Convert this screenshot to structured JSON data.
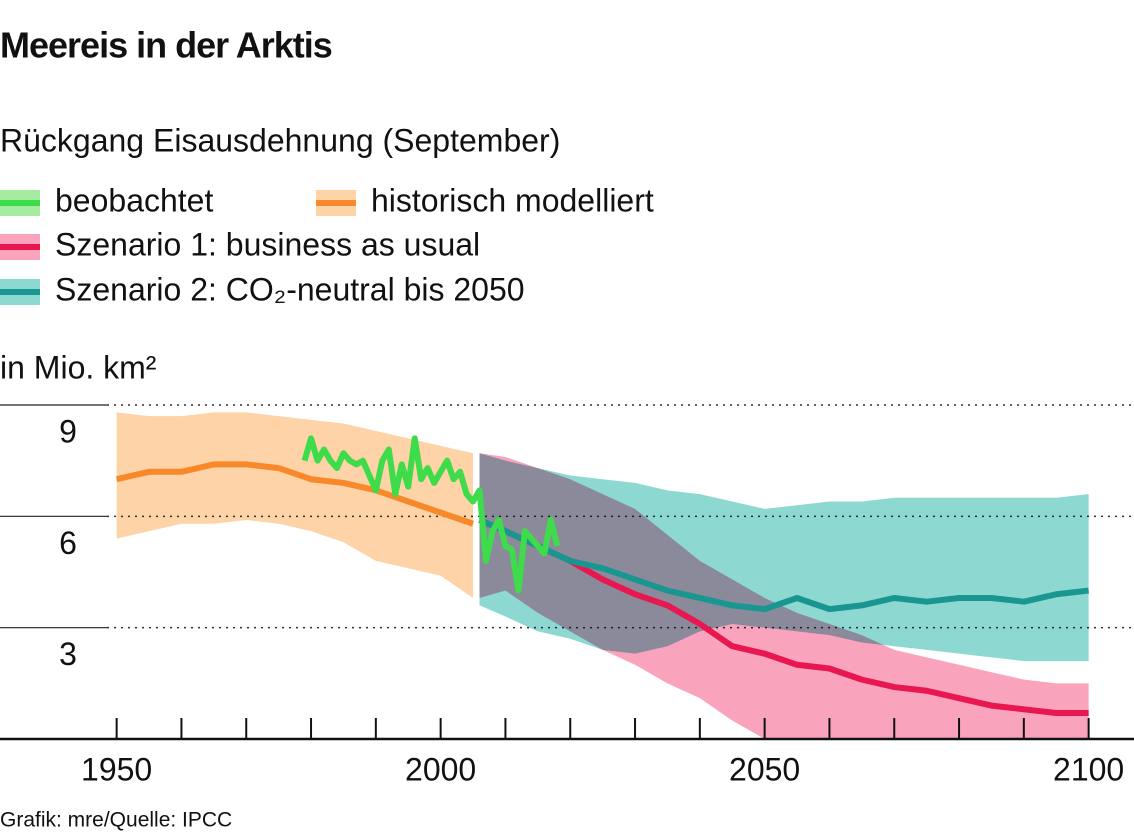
{
  "chart_data": {
    "type": "line",
    "title": "Meereis in der Arktis",
    "subtitle": "Rückgang Eisausdehnung (September)",
    "y_label": "in Mio. km²",
    "source": "Grafik: mre/Quelle: IPCC",
    "xlim": [
      1932,
      2107
    ],
    "ylim": [
      0,
      9
    ],
    "xticks": [
      1950,
      2000,
      2050,
      2100
    ],
    "xminorticks": [
      1950,
      1960,
      1970,
      1980,
      1990,
      2000,
      2010,
      2020,
      2030,
      2040,
      2050,
      2060,
      2070,
      2080,
      2090,
      2100
    ],
    "yticks": [
      3,
      6,
      9
    ],
    "grid": true,
    "series": [
      {
        "name": "beobachtet",
        "color": "#3edb4a",
        "band_color": "#a6eca0",
        "x": [
          1979,
          1980,
          1981,
          1982,
          1983,
          1984,
          1985,
          1986,
          1987,
          1988,
          1989,
          1990,
          1991,
          1992,
          1993,
          1994,
          1995,
          1996,
          1997,
          1998,
          1999,
          2000,
          2001,
          2002,
          2003,
          2004,
          2005,
          2006,
          2007,
          2008,
          2009,
          2010,
          2011,
          2012,
          2013,
          2014,
          2015,
          2016,
          2017,
          2018
        ],
        "values": [
          7.5,
          8.1,
          7.5,
          7.8,
          7.5,
          7.3,
          7.7,
          7.5,
          7.4,
          7.5,
          7.1,
          6.7,
          7.5,
          7.8,
          6.6,
          7.4,
          6.8,
          8.1,
          7.0,
          7.3,
          6.9,
          7.2,
          7.5,
          7.0,
          7.2,
          6.6,
          6.4,
          6.7,
          4.8,
          5.6,
          5.9,
          5.2,
          5.1,
          4.0,
          5.6,
          5.4,
          5.2,
          5.0,
          5.9,
          5.2
        ]
      },
      {
        "name": "historisch modelliert",
        "color": "#f7892a",
        "band_color": "#fdd3a7",
        "x": [
          1950,
          1955,
          1960,
          1965,
          1970,
          1975,
          1980,
          1985,
          1990,
          1995,
          2000,
          2005
        ],
        "values": [
          7.0,
          7.2,
          7.2,
          7.4,
          7.4,
          7.3,
          7.0,
          6.9,
          6.7,
          6.4,
          6.1,
          5.8
        ],
        "upper": [
          8.8,
          8.7,
          8.7,
          8.8,
          8.8,
          8.7,
          8.6,
          8.5,
          8.3,
          8.1,
          7.9,
          7.7
        ],
        "lower": [
          5.4,
          5.6,
          5.8,
          5.8,
          5.9,
          5.8,
          5.6,
          5.3,
          4.8,
          4.6,
          4.4,
          3.8
        ]
      },
      {
        "name": "Szenario 1: business as usual",
        "color": "#e8174f",
        "band_color": "#f9a3bc",
        "x": [
          2006,
          2010,
          2015,
          2020,
          2025,
          2030,
          2035,
          2040,
          2045,
          2050,
          2055,
          2060,
          2065,
          2070,
          2075,
          2080,
          2085,
          2090,
          2095,
          2100
        ],
        "values": [
          5.9,
          5.6,
          5.2,
          4.8,
          4.3,
          3.9,
          3.6,
          3.1,
          2.5,
          2.3,
          2.0,
          1.9,
          1.6,
          1.4,
          1.3,
          1.1,
          0.9,
          0.8,
          0.7,
          0.7
        ],
        "upper": [
          7.7,
          7.6,
          7.3,
          7.0,
          6.6,
          6.2,
          5.5,
          4.8,
          4.3,
          3.8,
          3.4,
          3.1,
          2.8,
          2.4,
          2.2,
          2.0,
          1.8,
          1.6,
          1.5,
          1.5
        ],
        "lower": [
          3.8,
          4.0,
          3.4,
          2.9,
          2.4,
          2.0,
          1.5,
          1.1,
          0.5,
          0,
          0,
          0,
          0,
          0,
          0,
          0,
          0,
          0,
          0,
          0
        ]
      },
      {
        "name": "Szenario 2: CO₂-neutral bis 2050",
        "color": "#1a9690",
        "band_color": "#8ed8d2",
        "x": [
          2006,
          2010,
          2015,
          2020,
          2025,
          2030,
          2035,
          2040,
          2045,
          2050,
          2055,
          2060,
          2065,
          2070,
          2075,
          2080,
          2085,
          2090,
          2095,
          2100
        ],
        "values": [
          5.9,
          5.6,
          5.2,
          4.8,
          4.6,
          4.3,
          4.0,
          3.8,
          3.6,
          3.5,
          3.8,
          3.5,
          3.6,
          3.8,
          3.7,
          3.8,
          3.8,
          3.7,
          3.9,
          4.0
        ],
        "upper": [
          7.7,
          7.5,
          7.3,
          7.1,
          7.0,
          6.9,
          6.7,
          6.6,
          6.4,
          6.2,
          6.3,
          6.4,
          6.4,
          6.5,
          6.5,
          6.5,
          6.5,
          6.5,
          6.5,
          6.6
        ],
        "lower": [
          3.6,
          3.3,
          2.9,
          2.7,
          2.4,
          2.3,
          2.5,
          2.9,
          3.1,
          3.0,
          2.9,
          2.8,
          2.6,
          2.5,
          2.4,
          2.3,
          2.2,
          2.1,
          2.1,
          2.1
        ]
      }
    ]
  }
}
